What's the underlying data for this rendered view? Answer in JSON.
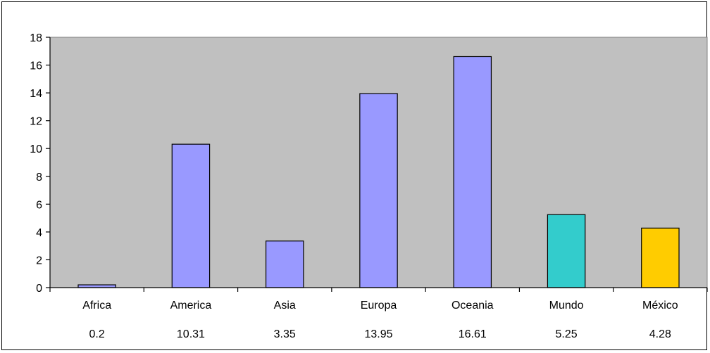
{
  "chart_data": {
    "type": "bar",
    "title": "",
    "xlabel": "",
    "ylabel": "",
    "ylim": [
      0,
      18
    ],
    "ytick_step": 2,
    "grid": false,
    "legend": "none",
    "categories": [
      "Africa",
      "America",
      "Asia",
      "Europa",
      "Oceania",
      "Mundo",
      "México"
    ],
    "values": [
      0.2,
      10.31,
      3.35,
      13.95,
      16.61,
      5.25,
      4.28
    ],
    "value_labels": [
      "0.2",
      "10.31",
      "3.35",
      "13.95",
      "16.61",
      "5.25",
      "4.28"
    ],
    "colors": [
      "#9999FF",
      "#9999FF",
      "#9999FF",
      "#9999FF",
      "#9999FF",
      "#33CCCC",
      "#FFCC00"
    ],
    "plot_background": "#C0C0C0"
  }
}
